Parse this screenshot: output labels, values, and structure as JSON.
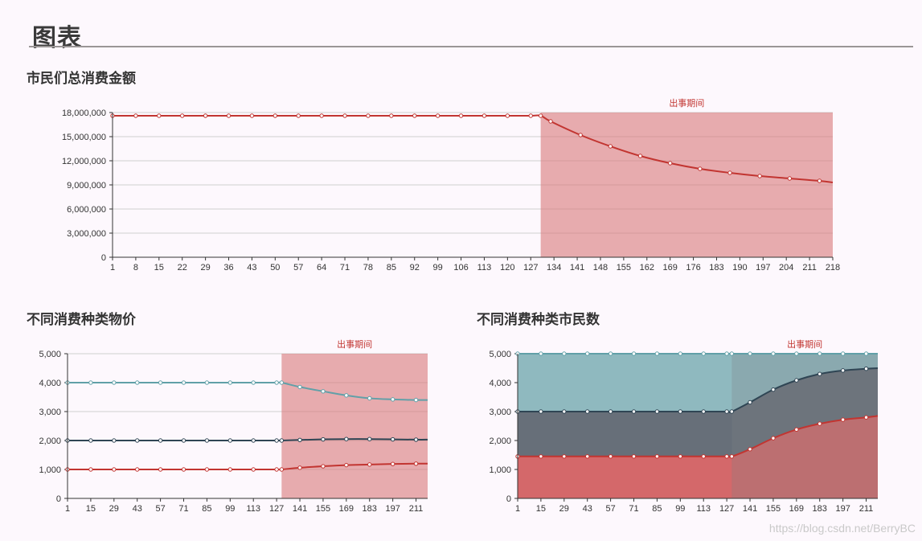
{
  "page": {
    "title": "图表",
    "watermark": "https://blog.csdn.net/BerryBC"
  },
  "chart_data": [
    {
      "id": "total",
      "type": "line",
      "title": "市民们总消费金额",
      "markArea": {
        "label": "出事期间",
        "from": 130,
        "to": 218,
        "color": "#d9787a"
      },
      "xlim": [
        1,
        218
      ],
      "x_ticks": [
        1,
        8,
        15,
        22,
        29,
        36,
        43,
        50,
        57,
        64,
        71,
        78,
        85,
        92,
        99,
        106,
        113,
        120,
        127,
        134,
        141,
        148,
        155,
        162,
        169,
        176,
        183,
        190,
        197,
        204,
        211,
        218
      ],
      "ylim": [
        0,
        18000000
      ],
      "y_ticks": [
        0,
        3000000,
        6000000,
        9000000,
        12000000,
        15000000,
        18000000
      ],
      "y_tick_labels": [
        "0",
        "3,000,000",
        "6,000,000",
        "9,000,000",
        "12,000,000",
        "15,000,000",
        "18,000,000"
      ],
      "grid": true,
      "series": [
        {
          "color": "#c23531",
          "x": [
            1,
            8,
            15,
            22,
            29,
            36,
            43,
            50,
            57,
            64,
            71,
            78,
            85,
            92,
            99,
            106,
            113,
            120,
            127,
            130,
            133,
            142,
            151,
            160,
            169,
            178,
            187,
            196,
            205,
            214,
            218
          ],
          "y": [
            17600000,
            17600000,
            17600000,
            17600000,
            17600000,
            17600000,
            17600000,
            17600000,
            17600000,
            17600000,
            17600000,
            17600000,
            17600000,
            17600000,
            17600000,
            17600000,
            17600000,
            17600000,
            17600000,
            17600000,
            16900000,
            15200000,
            13800000,
            12600000,
            11700000,
            11000000,
            10500000,
            10100000,
            9800000,
            9500000,
            9300000
          ]
        }
      ]
    },
    {
      "id": "price",
      "type": "line",
      "title": "不同消费种类物价",
      "markArea": {
        "label": "出事期间",
        "from": 130,
        "to": 218,
        "color": "#d9787a"
      },
      "xlim": [
        1,
        218
      ],
      "x_ticks": [
        1,
        15,
        29,
        43,
        57,
        71,
        85,
        99,
        113,
        127,
        141,
        155,
        169,
        183,
        197,
        211
      ],
      "ylim": [
        0,
        5000
      ],
      "y_ticks": [
        0,
        1000,
        2000,
        3000,
        4000,
        5000
      ],
      "y_tick_labels": [
        "0",
        "1,000",
        "2,000",
        "3,000",
        "4,000",
        "5,000"
      ],
      "grid": true,
      "series": [
        {
          "color": "#61a0a8",
          "x": [
            1,
            15,
            29,
            43,
            57,
            71,
            85,
            99,
            113,
            127,
            130,
            141,
            155,
            169,
            183,
            197,
            211,
            218
          ],
          "y": [
            4000,
            4000,
            4000,
            4000,
            4000,
            4000,
            4000,
            4000,
            4000,
            4000,
            4000,
            3850,
            3700,
            3560,
            3460,
            3420,
            3400,
            3400
          ]
        },
        {
          "color": "#2f4554",
          "x": [
            1,
            15,
            29,
            43,
            57,
            71,
            85,
            99,
            113,
            127,
            130,
            141,
            155,
            169,
            183,
            197,
            211,
            218
          ],
          "y": [
            2000,
            2000,
            2000,
            2000,
            2000,
            2000,
            2000,
            2000,
            2000,
            2000,
            2000,
            2020,
            2040,
            2050,
            2050,
            2040,
            2030,
            2030
          ]
        },
        {
          "color": "#c23531",
          "x": [
            1,
            15,
            29,
            43,
            57,
            71,
            85,
            99,
            113,
            127,
            130,
            141,
            155,
            169,
            183,
            197,
            211,
            218
          ],
          "y": [
            1000,
            1000,
            1000,
            1000,
            1000,
            1000,
            1000,
            1000,
            1000,
            1000,
            1000,
            1060,
            1110,
            1150,
            1170,
            1190,
            1200,
            1200
          ]
        }
      ]
    },
    {
      "id": "citizens",
      "type": "area",
      "title": "不同消费种类市民数",
      "markArea": {
        "label": "出事期间",
        "from": 130,
        "to": 218,
        "color": "#7c8084"
      },
      "xlim": [
        1,
        218
      ],
      "x_ticks": [
        1,
        15,
        29,
        43,
        57,
        71,
        85,
        99,
        113,
        127,
        141,
        155,
        169,
        183,
        197,
        211
      ],
      "ylim": [
        0,
        5000
      ],
      "y_ticks": [
        0,
        1000,
        2000,
        3000,
        4000,
        5000
      ],
      "y_tick_labels": [
        "0",
        "1,000",
        "2,000",
        "3,000",
        "4,000",
        "5,000"
      ],
      "grid": true,
      "stacked_totals": true,
      "series": [
        {
          "color": "#61a0a8",
          "fill": "#8fb9bf",
          "x": [
            1,
            15,
            29,
            43,
            57,
            71,
            85,
            99,
            113,
            127,
            130,
            141,
            155,
            169,
            183,
            197,
            211,
            218
          ],
          "y": [
            5000,
            5000,
            5000,
            5000,
            5000,
            5000,
            5000,
            5000,
            5000,
            5000,
            5000,
            5000,
            5000,
            5000,
            5000,
            5000,
            5000,
            5000
          ]
        },
        {
          "color": "#2f4554",
          "fill": "#676f79",
          "x": [
            1,
            15,
            29,
            43,
            57,
            71,
            85,
            99,
            113,
            127,
            130,
            141,
            155,
            169,
            183,
            197,
            211,
            218
          ],
          "y": [
            3000,
            3000,
            3000,
            3000,
            3000,
            3000,
            3000,
            3000,
            3000,
            3000,
            3000,
            3320,
            3760,
            4080,
            4300,
            4420,
            4480,
            4500
          ]
        },
        {
          "color": "#c23531",
          "fill": "#d4686a",
          "x": [
            1,
            15,
            29,
            43,
            57,
            71,
            85,
            99,
            113,
            127,
            130,
            141,
            155,
            169,
            183,
            197,
            211,
            218
          ],
          "y": [
            1450,
            1450,
            1450,
            1450,
            1450,
            1450,
            1450,
            1450,
            1450,
            1450,
            1450,
            1700,
            2080,
            2380,
            2580,
            2720,
            2800,
            2850
          ]
        }
      ]
    }
  ]
}
